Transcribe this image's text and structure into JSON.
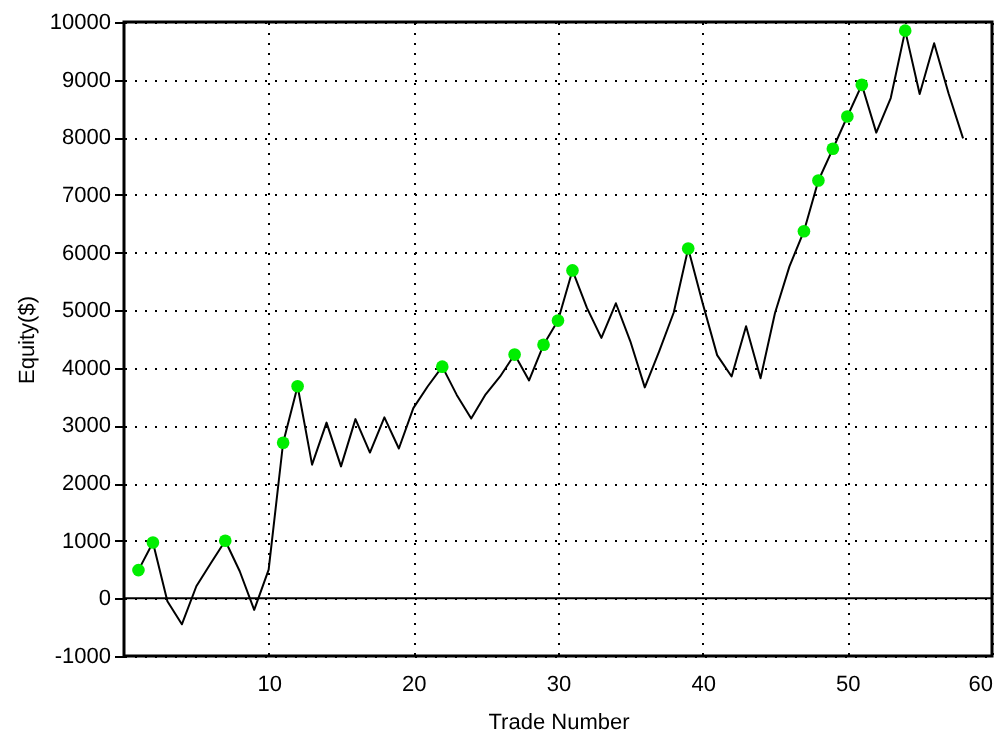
{
  "chart_data": {
    "type": "line",
    "xlabel": "Trade Number",
    "ylabel": "Equity($)",
    "xlim": [
      0,
      60
    ],
    "xticks": [
      10,
      20,
      30,
      40,
      50,
      60
    ],
    "ylim": [
      -1000,
      10000
    ],
    "yticks": [
      -1000,
      0,
      1000,
      2000,
      3000,
      4000,
      5000,
      6000,
      7000,
      8000,
      9000,
      10000
    ],
    "grid": true,
    "marker": "none",
    "line_style": "solid",
    "ref_lines": [
      {
        "axis": "y",
        "value": 0,
        "color": "#000000"
      }
    ],
    "series": [
      {
        "color": "#000000",
        "x": [
          1,
          2,
          3,
          4,
          5,
          6,
          7,
          8,
          9,
          10,
          11,
          12,
          13,
          14,
          15,
          16,
          17,
          18,
          19,
          20,
          21,
          22,
          23,
          24,
          25,
          26,
          27,
          28,
          29,
          30,
          31,
          32,
          33,
          34,
          35,
          36,
          37,
          38,
          39,
          40,
          41,
          42,
          43,
          44,
          45,
          46,
          47,
          48,
          49,
          50,
          51,
          52,
          53,
          54,
          55,
          56,
          57,
          58
        ],
        "values": [
          490,
          970,
          -50,
          -450,
          210,
          610,
          1000,
          470,
          -200,
          500,
          2700,
          3680,
          2320,
          3050,
          2290,
          3110,
          2530,
          3140,
          2600,
          3300,
          3680,
          4020,
          3530,
          3120,
          3540,
          3850,
          4230,
          3780,
          4400,
          4820,
          5690,
          5040,
          4520,
          5120,
          4460,
          3660,
          4290,
          4960,
          6070,
          5120,
          4220,
          3850,
          4720,
          3820,
          4950,
          5760,
          6370,
          7250,
          7800,
          8360,
          8910,
          8080,
          8680,
          9850,
          8750,
          9630,
          8760,
          7980
        ]
      },
      {
        "type": "scatter",
        "color": "#00ee00",
        "marker": "circle",
        "x": [
          1,
          2,
          7,
          11,
          12,
          22,
          27,
          29,
          30,
          31,
          39,
          47,
          48,
          49,
          50,
          51,
          54
        ],
        "values": [
          490,
          970,
          1000,
          2700,
          3680,
          4020,
          4230,
          4400,
          4820,
          5690,
          6070,
          6370,
          7250,
          7800,
          8360,
          8910,
          9850
        ]
      }
    ]
  }
}
